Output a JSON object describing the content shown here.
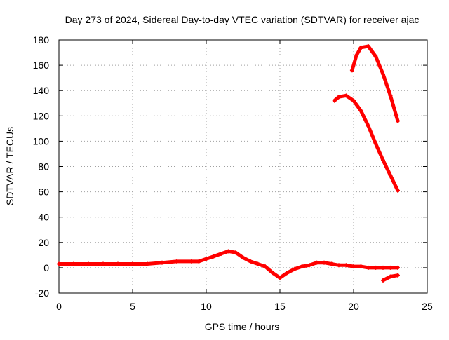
{
  "chart_data": {
    "type": "scatter",
    "title": "Day 273 of 2024, Sidereal Day-to-day VTEC variation (SDTVAR) for receiver ajac",
    "xlabel": "GPS time / hours",
    "ylabel": "SDTVAR / TECUs",
    "xlim": [
      0,
      25
    ],
    "ylim": [
      -20,
      180
    ],
    "xticks": [
      "0",
      "5",
      "10",
      "15",
      "20",
      "25"
    ],
    "yticks": [
      "-20",
      "0",
      "20",
      "40",
      "60",
      "80",
      "100",
      "120",
      "140",
      "160",
      "180"
    ],
    "grid": true,
    "marker_color": "#ff0000",
    "series": [
      {
        "x": [
          0,
          1,
          2,
          3,
          4,
          5,
          6,
          7,
          8,
          9,
          9.5,
          10,
          10.5,
          11,
          11.5,
          12,
          12.5,
          13,
          13.5,
          14,
          14.5,
          15,
          15.5,
          16,
          16.5,
          17,
          17.5,
          18,
          18.5,
          19,
          19.5,
          20,
          20.5,
          21,
          21.5,
          22,
          22.5,
          23
        ],
        "y": [
          3,
          3,
          3,
          3,
          3,
          3,
          3,
          4,
          5,
          5,
          5,
          7,
          9,
          11,
          13,
          12,
          8,
          5,
          3,
          1,
          -4,
          -8,
          -4,
          -1,
          1,
          2,
          4,
          4,
          3,
          2,
          2,
          1,
          1,
          0,
          0,
          0,
          0,
          0
        ]
      },
      {
        "x": [
          18.7,
          19,
          19.5,
          20,
          20.5,
          21,
          21.5,
          22,
          22.5,
          23
        ],
        "y": [
          132,
          135,
          136,
          132,
          124,
          112,
          98,
          85,
          73,
          61
        ]
      },
      {
        "x": [
          19.9,
          20.2,
          20.5,
          21,
          21.5,
          22,
          22.5,
          23
        ],
        "y": [
          156,
          168,
          174,
          175,
          167,
          153,
          136,
          116
        ]
      },
      {
        "x": [
          22.0,
          22.5,
          23
        ],
        "y": [
          -10,
          -7,
          -6
        ]
      }
    ]
  }
}
